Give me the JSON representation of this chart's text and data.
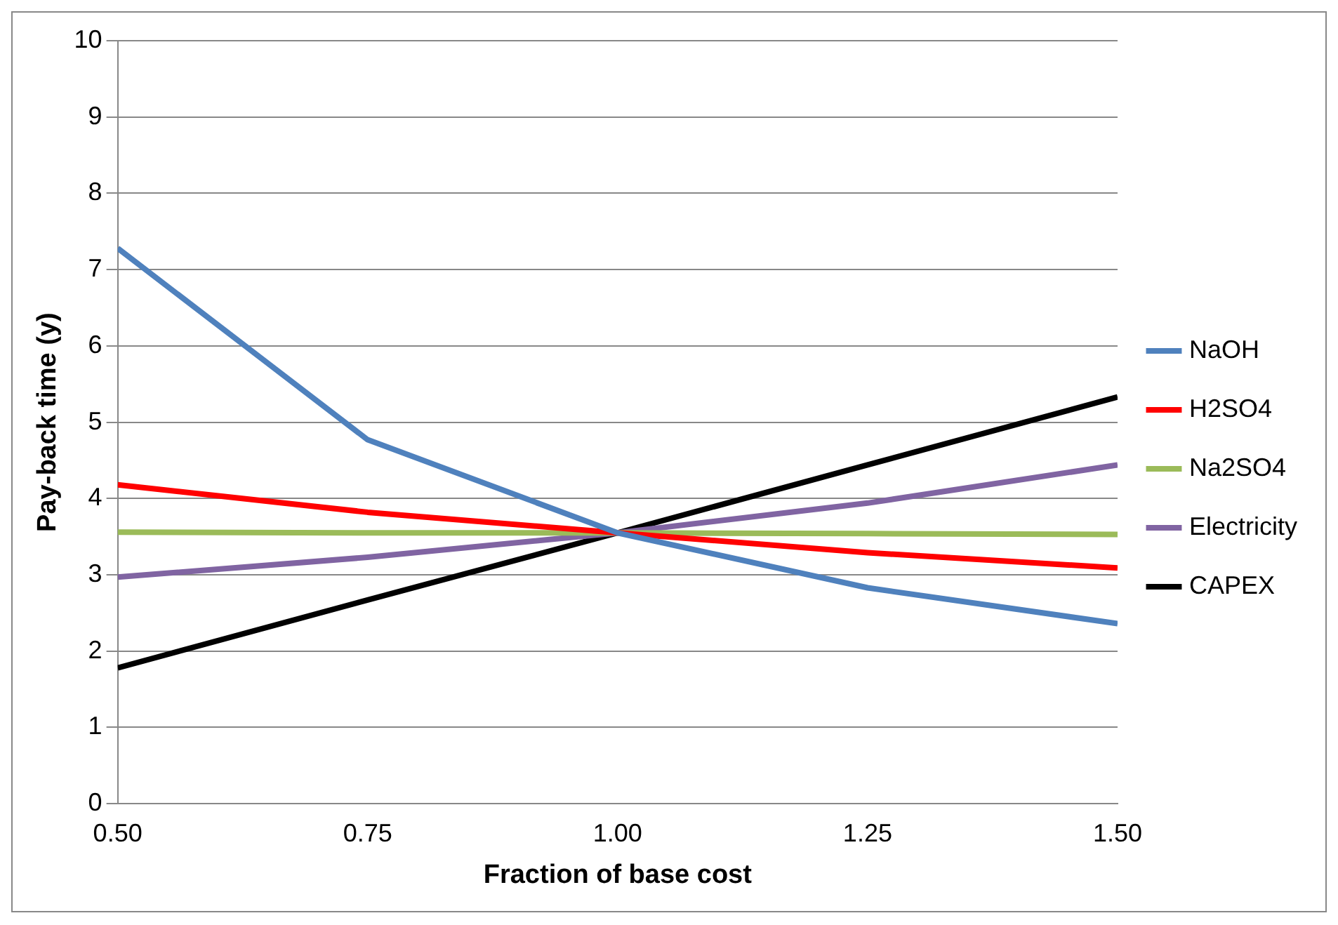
{
  "chart_data": {
    "type": "line",
    "xlabel": "Fraction of base cost",
    "ylabel": "Pay-back time (y)",
    "x": [
      0.5,
      0.75,
      1.0,
      1.25,
      1.5
    ],
    "xlim": [
      0.5,
      1.5
    ],
    "xticks": [
      {
        "value": 0.5,
        "label": "0.50"
      },
      {
        "value": 0.75,
        "label": "0.75"
      },
      {
        "value": 1.0,
        "label": "1.00"
      },
      {
        "value": 1.25,
        "label": "1.25"
      },
      {
        "value": 1.5,
        "label": "1.50"
      }
    ],
    "ylim": [
      0,
      10
    ],
    "yticks": [
      0,
      1,
      2,
      3,
      4,
      5,
      6,
      7,
      8,
      9,
      10
    ],
    "grid": "y",
    "legend": "right",
    "marker": "none",
    "line_style": "solid",
    "series": [
      {
        "name": "NaOH",
        "color": "#4f81bd",
        "values": [
          7.28,
          4.77,
          3.55,
          2.83,
          2.36
        ]
      },
      {
        "name": "H2SO4",
        "color": "#ff0000",
        "values": [
          4.18,
          3.82,
          3.55,
          3.29,
          3.09
        ]
      },
      {
        "name": "Na2SO4",
        "color": "#9bbb59",
        "values": [
          3.56,
          3.55,
          3.55,
          3.54,
          3.53
        ]
      },
      {
        "name": "Electricity",
        "color": "#8064a2",
        "values": [
          2.97,
          3.23,
          3.55,
          3.94,
          4.44
        ]
      },
      {
        "name": "CAPEX",
        "color": "#000000",
        "values": [
          1.78,
          2.67,
          3.55,
          4.44,
          5.33
        ]
      }
    ]
  }
}
